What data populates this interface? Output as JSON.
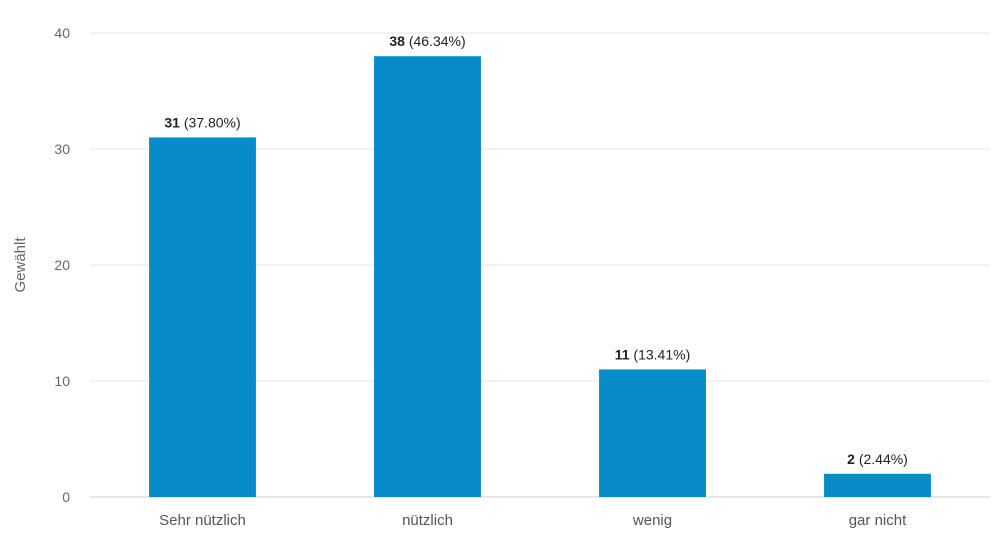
{
  "chart_data": {
    "type": "bar",
    "categories": [
      "Sehr nützlich",
      "nützlich",
      "wenig",
      "gar nicht"
    ],
    "values": [
      31,
      38,
      11,
      2
    ],
    "percent_labels": [
      "(37.80%)",
      "(46.34%)",
      "(13.41%)",
      "(2.44%)"
    ],
    "ylabel": "Gewählt",
    "ylim": [
      0,
      40
    ],
    "yticks": [
      0,
      10,
      20,
      30,
      40
    ],
    "grid": true,
    "colors": {
      "bar": "#078cc9",
      "grid": "#e6e6e6",
      "axis": "#cccccc"
    }
  }
}
